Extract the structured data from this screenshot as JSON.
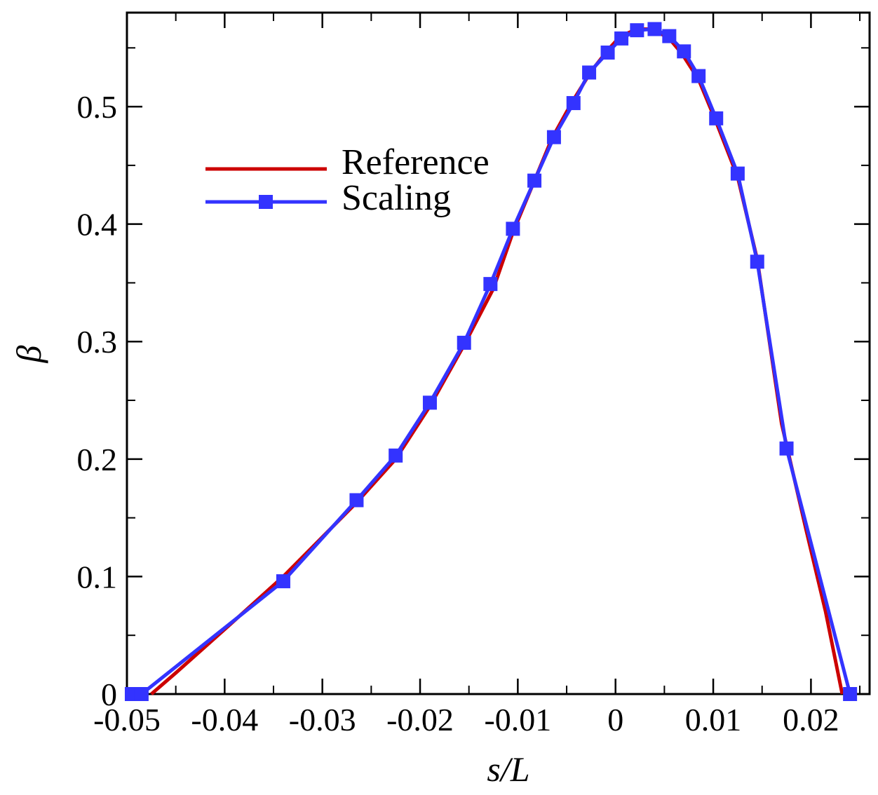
{
  "chart_data": {
    "type": "line",
    "title": "",
    "xlabel": "s/L",
    "ylabel": "β",
    "xlim": [
      -0.05,
      0.026
    ],
    "ylim": [
      0,
      0.58
    ],
    "x_ticks": [
      -0.05,
      -0.04,
      -0.03,
      -0.02,
      -0.01,
      0,
      0.01,
      0.02
    ],
    "x_tick_labels": [
      "-0.05",
      "-0.04",
      "-0.03",
      "-0.02",
      "-0.01",
      "0",
      "0.01",
      "0.02"
    ],
    "y_ticks": [
      0,
      0.1,
      0.2,
      0.3,
      0.4,
      0.5
    ],
    "y_tick_labels": [
      "0",
      "0.1",
      "0.2",
      "0.3",
      "0.4",
      "0.5"
    ],
    "grid": false,
    "legend_position": "top-left",
    "series": [
      {
        "name": "Reference",
        "color": "#cc0000",
        "marker": "none",
        "x": [
          -0.0475,
          -0.045,
          -0.04,
          -0.034,
          -0.0265,
          -0.0225,
          -0.019,
          -0.0155,
          -0.0125,
          -0.0105,
          -0.0085,
          -0.0065,
          -0.0045,
          -0.0025,
          -0.0008,
          0.0005,
          0.0022,
          0.0038,
          0.0055,
          0.0068,
          0.0085,
          0.0103,
          0.0125,
          0.0145,
          0.017,
          0.0195,
          0.0215,
          0.0232
        ],
        "y": [
          0.0,
          0.018,
          0.055,
          0.1,
          0.163,
          0.2,
          0.245,
          0.297,
          0.345,
          0.393,
          0.433,
          0.473,
          0.503,
          0.53,
          0.548,
          0.56,
          0.566,
          0.566,
          0.558,
          0.545,
          0.523,
          0.487,
          0.44,
          0.37,
          0.23,
          0.14,
          0.07,
          0.0
        ]
      },
      {
        "name": "Scaling",
        "color": "#3333ff",
        "marker": "square",
        "x": [
          -0.0495,
          -0.0485,
          -0.034,
          -0.0265,
          -0.0225,
          -0.019,
          -0.0155,
          -0.0128,
          -0.0105,
          -0.0083,
          -0.0063,
          -0.0043,
          -0.0027,
          -0.0008,
          0.0006,
          0.0022,
          0.004,
          0.0055,
          0.007,
          0.0085,
          0.0103,
          0.0125,
          0.0145,
          0.0175,
          0.024
        ],
        "y": [
          0.0,
          0.0,
          0.096,
          0.165,
          0.203,
          0.248,
          0.299,
          0.349,
          0.396,
          0.437,
          0.474,
          0.503,
          0.529,
          0.546,
          0.558,
          0.565,
          0.566,
          0.56,
          0.547,
          0.526,
          0.49,
          0.443,
          0.368,
          0.209,
          0.0
        ]
      }
    ]
  }
}
